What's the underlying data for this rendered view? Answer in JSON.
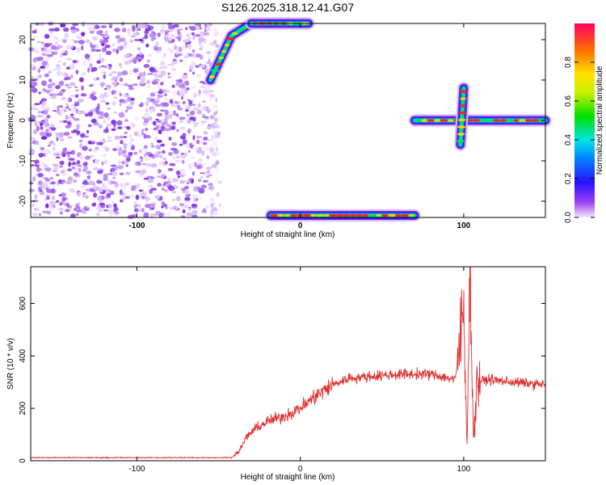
{
  "title": "S126.2025.318.12.41.G07",
  "chart_data": [
    {
      "type": "heatmap",
      "xlabel": "Height of straight line (km)",
      "ylabel": "Frequency (Hz)",
      "xlim": [
        -165,
        150
      ],
      "ylim": [
        -24,
        24
      ],
      "x_ticks": [
        "-100",
        "0",
        "100"
      ],
      "y_ticks": [
        "20",
        "10",
        "0",
        "-10",
        "-20"
      ],
      "colorbar": {
        "label": "Normalized spectral amplitude",
        "range": [
          0,
          1
        ],
        "ticks": [
          "0.0",
          "0.2",
          "0.4",
          "0.6",
          "0.8"
        ]
      },
      "features": [
        {
          "kind": "noise",
          "x_range": [
            -165,
            -52
          ],
          "y_range": [
            -24,
            24
          ]
        },
        {
          "kind": "line",
          "points": [
            [
              -55,
              10
            ],
            [
              -42,
              21
            ],
            [
              -30,
              24
            ]
          ]
        },
        {
          "kind": "line",
          "points": [
            [
              -30,
              24
            ],
            [
              5,
              24
            ]
          ]
        },
        {
          "kind": "line",
          "points": [
            [
              -18,
              -23.5
            ],
            [
              70,
              -23.5
            ]
          ]
        },
        {
          "kind": "line",
          "points": [
            [
              70,
              0
            ],
            [
              150,
              0
            ]
          ]
        },
        {
          "kind": "line",
          "points": [
            [
              98,
              -6
            ],
            [
              100,
              8
            ]
          ]
        }
      ]
    },
    {
      "type": "line",
      "xlabel": "Height of straight line (km)",
      "ylabel": "SNR (10 * v/v)",
      "xlim": [
        -165,
        150
      ],
      "ylim": [
        0,
        740
      ],
      "x_ticks": [
        "-100",
        "0",
        "100"
      ],
      "y_ticks": [
        "0",
        "200",
        "400",
        "600"
      ],
      "line_color": "#e03030",
      "series": [
        {
          "x": [
            -165,
            -150,
            -120,
            -90,
            -60,
            -42,
            -37,
            -33,
            -28,
            -20,
            -10,
            0,
            10,
            20,
            30,
            40,
            60,
            80,
            95,
            100,
            102,
            104,
            106,
            108,
            115,
            130,
            150
          ],
          "values": [
            12,
            12,
            12,
            12,
            12,
            12,
            40,
            90,
            120,
            150,
            170,
            200,
            250,
            290,
            315,
            320,
            330,
            330,
            310,
            580,
            70,
            760,
            60,
            300,
            310,
            300,
            290
          ]
        }
      ]
    }
  ]
}
